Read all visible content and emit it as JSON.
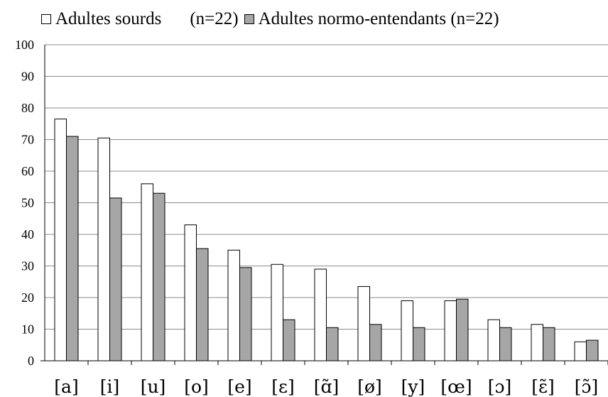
{
  "legend": {
    "deaf_label": "Adultes sourds",
    "deaf_n": "(n=22)",
    "hearing_label": "Adultes normo-entendants (n=22)"
  },
  "colors": {
    "deaf": "#ffffff",
    "hearing": "#a6a6a6",
    "grid": "#8c8c8c",
    "stroke": "#000000"
  },
  "chart_data": {
    "type": "bar",
    "categories": [
      "[a]",
      "[i]",
      "[u]",
      "[o]",
      "[e]",
      "[ɛ]",
      "[ɑ̃]",
      "[ø]",
      "[y]",
      "[œ]",
      "[ɔ]",
      "[ɛ̃]",
      "[ɔ̃]"
    ],
    "series": [
      {
        "name": "Adultes sourds (n=22)",
        "values": [
          76.5,
          70.5,
          56,
          43,
          35,
          30.5,
          29,
          23.5,
          19,
          19,
          13,
          11.5,
          6
        ]
      },
      {
        "name": "Adultes normo-entendants (n=22)",
        "values": [
          71,
          51.5,
          53,
          35.5,
          29.5,
          13,
          10.5,
          11.5,
          10.5,
          19.5,
          10.5,
          10.5,
          6.5
        ]
      }
    ],
    "yticks": [
      0,
      10,
      20,
      30,
      40,
      50,
      60,
      70,
      80,
      90,
      100
    ],
    "ylim": [
      0,
      100
    ],
    "grid": true,
    "legend_position": "top"
  }
}
